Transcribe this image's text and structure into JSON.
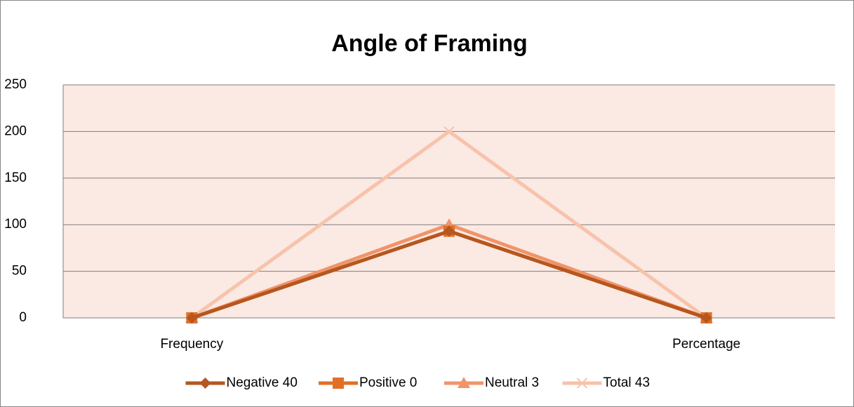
{
  "chart_data": {
    "type": "line",
    "title": "Angle of Framing",
    "categories": [
      "Frequency",
      null,
      "Percentage"
    ],
    "series": [
      {
        "name": "Negative 40",
        "color": "#b5571f",
        "marker": "diamond",
        "values": [
          0,
          93,
          0
        ]
      },
      {
        "name": "Positive 0",
        "color": "#e07028",
        "marker": "square",
        "values": [
          0,
          93,
          0
        ]
      },
      {
        "name": "Neutral 3",
        "color": "#f0946a",
        "marker": "triangle",
        "values": [
          0,
          100,
          0
        ]
      },
      {
        "name": "Total 43",
        "color": "#f7c3ab",
        "marker": "x",
        "values": [
          0,
          200,
          0
        ]
      }
    ],
    "ylim": [
      0,
      250
    ],
    "yticks": [
      0,
      50,
      100,
      150,
      200,
      250
    ],
    "grid": true,
    "legend": "bottom"
  }
}
